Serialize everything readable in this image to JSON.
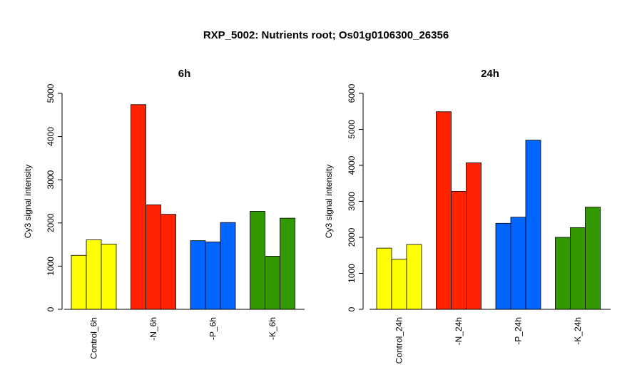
{
  "title": "RXP_5002: Nutrients root; Os01g0106300_26356",
  "chart_data": [
    {
      "type": "bar",
      "title": "6h",
      "ylabel": "Cy3 signal intensity",
      "ylim": [
        0,
        5000
      ],
      "yticks": [
        0,
        1000,
        2000,
        3000,
        4000,
        5000
      ],
      "groups": [
        {
          "label": "Control_6h",
          "color": "#ffff00",
          "values": [
            1250,
            1610,
            1510
          ]
        },
        {
          "label": "-N_6h",
          "color": "#ff2200",
          "values": [
            4740,
            2420,
            2200
          ]
        },
        {
          "label": "-P_6h",
          "color": "#0066ff",
          "values": [
            1590,
            1560,
            2010
          ]
        },
        {
          "label": "-K_6h",
          "color": "#339900",
          "values": [
            2270,
            1230,
            2110
          ]
        }
      ]
    },
    {
      "type": "bar",
      "title": "24h",
      "ylabel": "Cy3 signal intensity",
      "ylim": [
        0,
        6000
      ],
      "yticks": [
        0,
        1000,
        2000,
        3000,
        4000,
        5000,
        6000
      ],
      "groups": [
        {
          "label": "Control_24h",
          "color": "#ffff00",
          "values": [
            1700,
            1390,
            1800
          ]
        },
        {
          "label": "-N_24h",
          "color": "#ff2200",
          "values": [
            5490,
            3280,
            4070
          ]
        },
        {
          "label": "-P_24h",
          "color": "#0066ff",
          "values": [
            2390,
            2560,
            4700
          ]
        },
        {
          "label": "-K_24h",
          "color": "#339900",
          "values": [
            2000,
            2270,
            2840
          ]
        }
      ]
    }
  ]
}
